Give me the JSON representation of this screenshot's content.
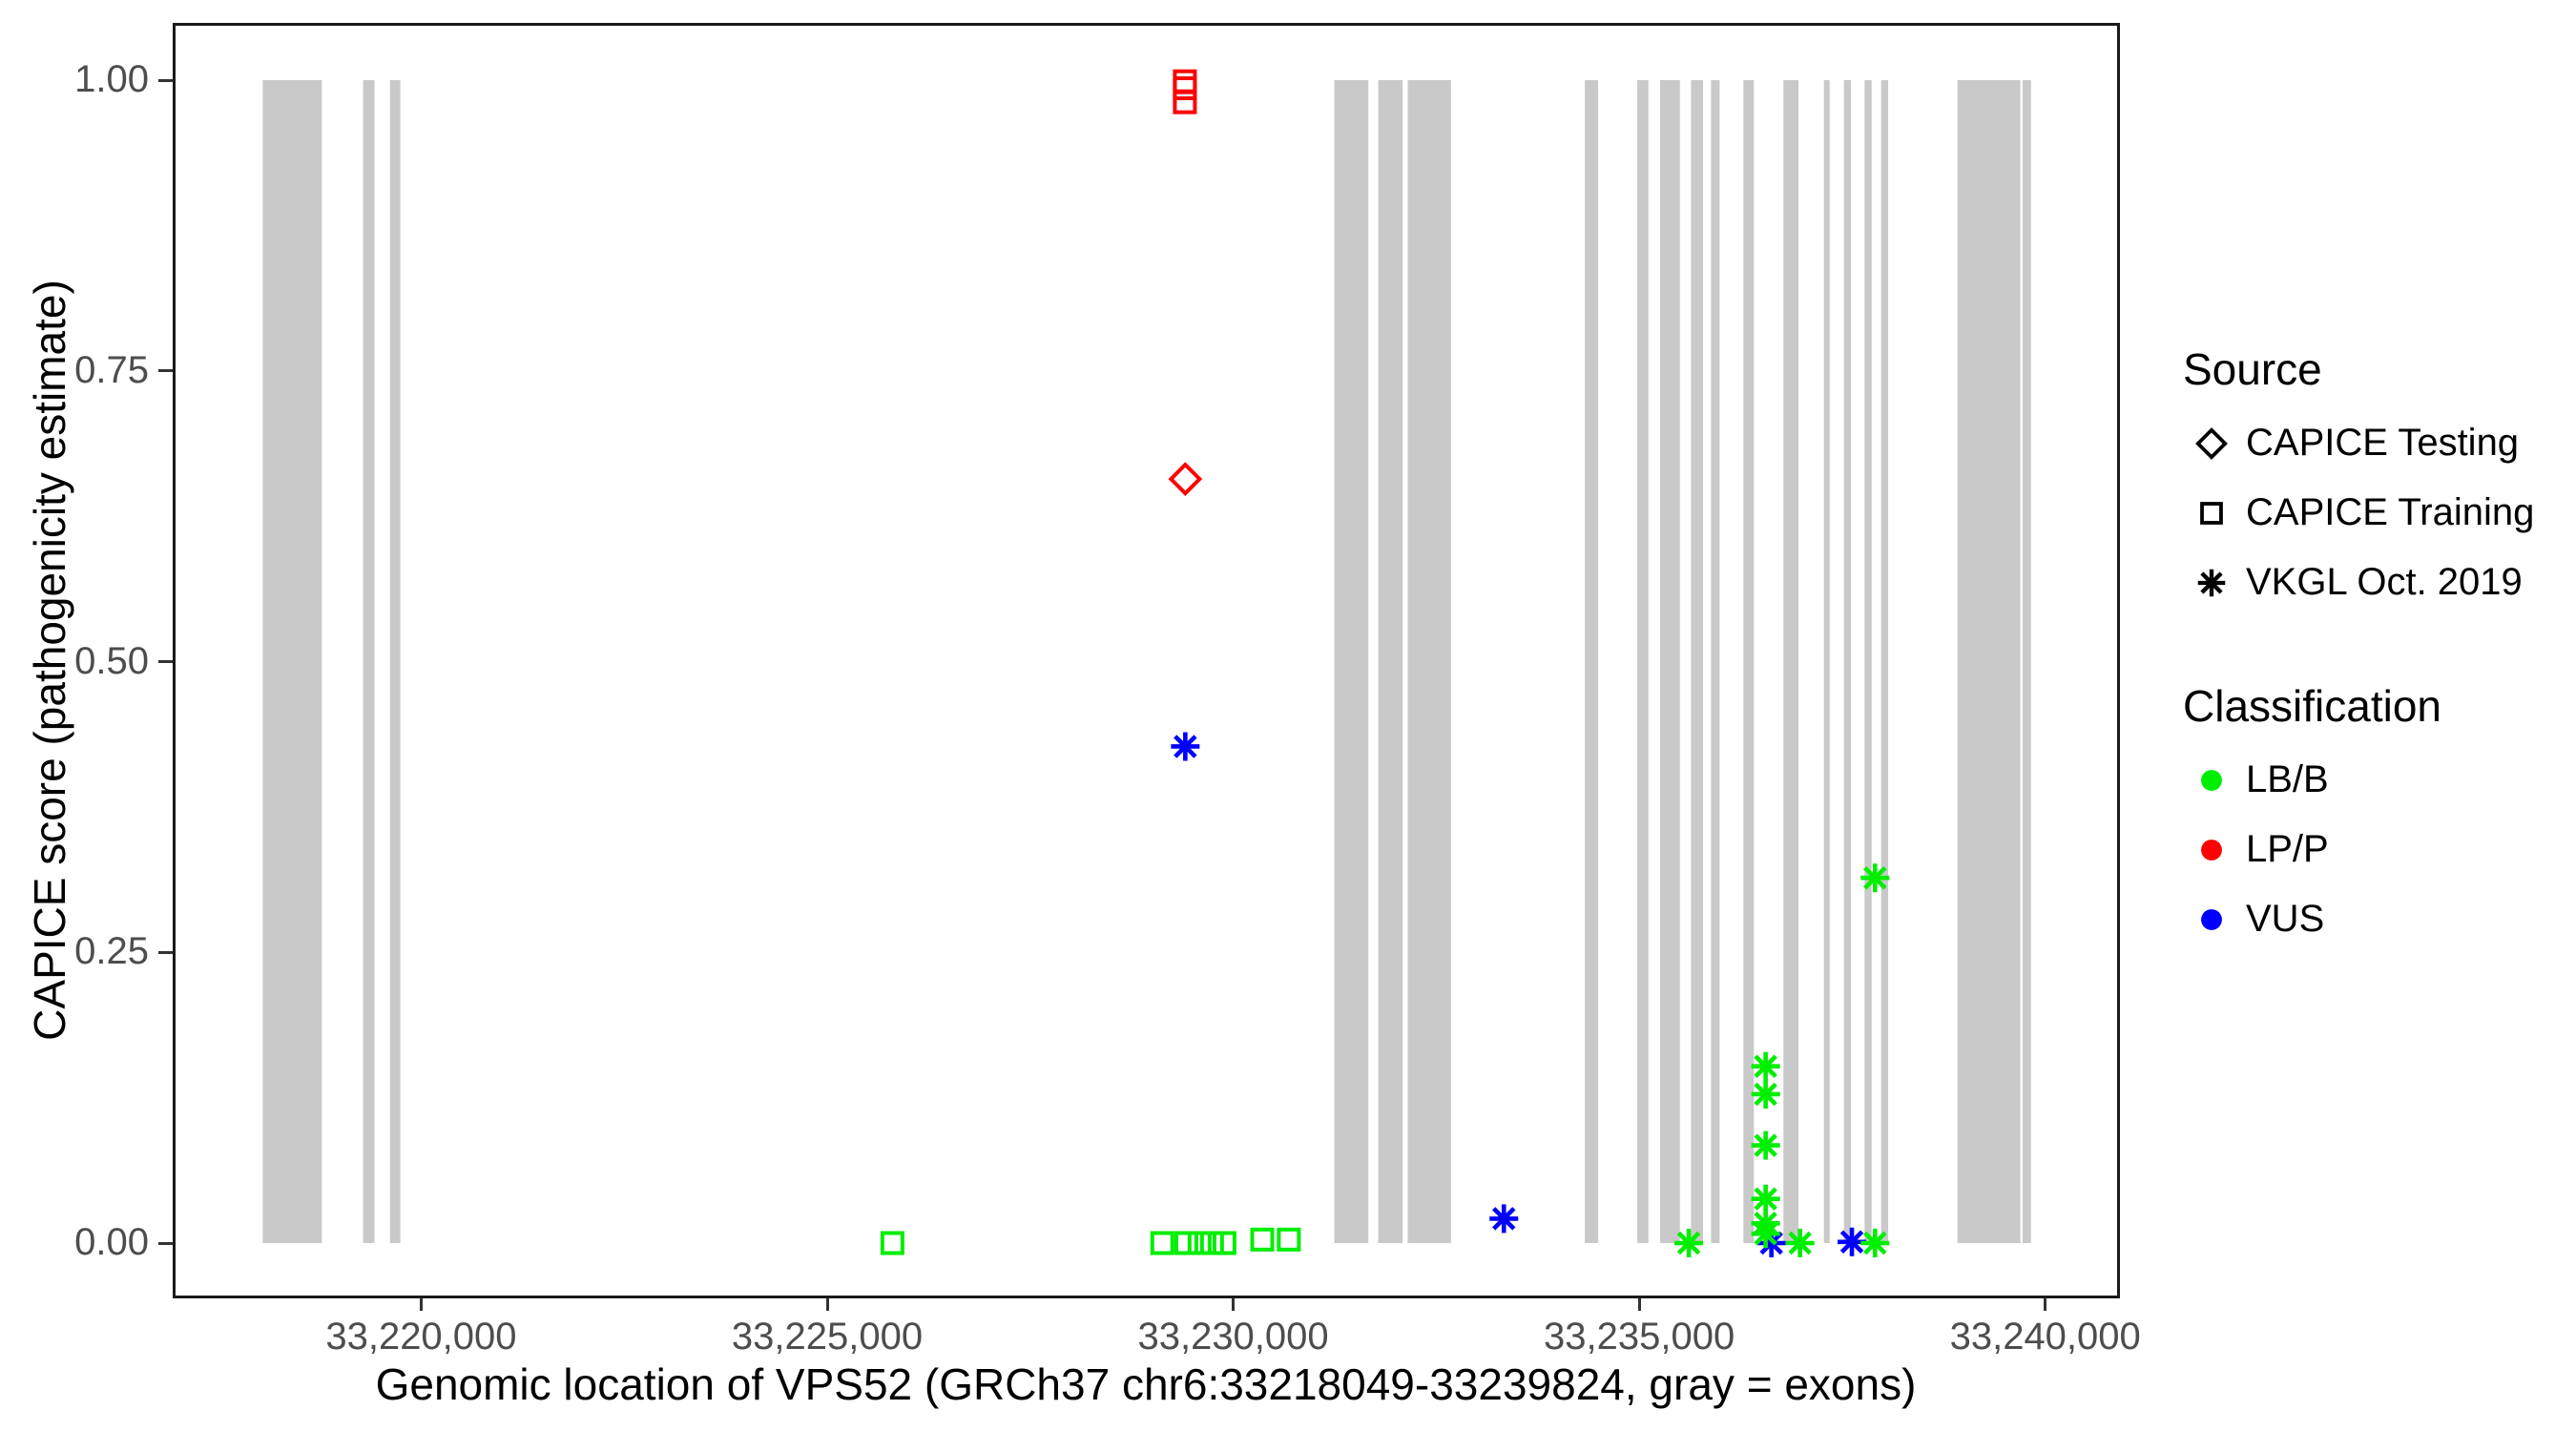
{
  "chart_data": {
    "type": "scatter",
    "title": "",
    "xlabel": "Genomic location of VPS52 (GRCh37 chr6:33218049-33239824, gray = exons)",
    "ylabel": "CAPICE score (pathogenicity estimate)",
    "x_domain_bp": [
      33216940,
      33240920
    ],
    "y_domain": [
      -0.0476,
      1.0492
    ],
    "x_ticks": [
      {
        "bp": 33220000,
        "label": "33,220,000"
      },
      {
        "bp": 33225000,
        "label": "33,225,000"
      },
      {
        "bp": 33230000,
        "label": "33,230,000"
      },
      {
        "bp": 33235000,
        "label": "33,235,000"
      },
      {
        "bp": 33240000,
        "label": "33,240,000"
      }
    ],
    "y_ticks": [
      {
        "v": 0.0,
        "label": "0.00"
      },
      {
        "v": 0.25,
        "label": "0.25"
      },
      {
        "v": 0.5,
        "label": "0.50"
      },
      {
        "v": 0.75,
        "label": "0.75"
      },
      {
        "v": 1.0,
        "label": "1.00"
      }
    ],
    "exon_note": "gray bars = exons of VPS52, drawn from score 0 to 1",
    "exons_bp": [
      [
        33218049,
        33218776
      ],
      [
        33219285,
        33219425
      ],
      [
        33219617,
        33219743
      ],
      [
        33231245,
        33231664
      ],
      [
        33231785,
        33232087
      ],
      [
        33232149,
        33232682
      ],
      [
        33234330,
        33234494
      ],
      [
        33234976,
        33235113
      ],
      [
        33235258,
        33235501
      ],
      [
        33235637,
        33235786
      ],
      [
        33235884,
        33235990
      ],
      [
        33236283,
        33236412
      ],
      [
        33236776,
        33236961
      ],
      [
        33237274,
        33237345
      ],
      [
        33237521,
        33237607
      ],
      [
        33237775,
        33237862
      ],
      [
        33237979,
        33238065
      ],
      [
        33238919,
        33239694
      ],
      [
        33239721,
        33239824
      ]
    ],
    "series": [
      {
        "name": "LP/P - CAPICE Training",
        "classification": "LP/P",
        "source": "CAPICE Training",
        "shape": "square",
        "color": "#FF0000",
        "points": [
          [
            33229405,
            0.999
          ],
          [
            33229405,
            0.993
          ],
          [
            33229405,
            0.981
          ]
        ]
      },
      {
        "name": "LP/P - CAPICE Testing",
        "classification": "LP/P",
        "source": "CAPICE Testing",
        "shape": "diamond",
        "color": "#FF0000",
        "points": [
          [
            33229410,
            0.657
          ]
        ]
      },
      {
        "name": "VUS - VKGL Oct. 2019",
        "classification": "VUS",
        "source": "VKGL Oct. 2019",
        "shape": "asterisk",
        "color": "#0000FF",
        "points": [
          [
            33229410,
            0.427
          ],
          [
            33233333,
            0.021
          ],
          [
            33236628,
            0.0
          ],
          [
            33237619,
            0.001
          ]
        ]
      },
      {
        "name": "LB/B - CAPICE Training",
        "classification": "LB/B",
        "source": "CAPICE Training",
        "shape": "square",
        "color": "#00EE00",
        "points": [
          [
            33225803,
            0.0
          ],
          [
            33229127,
            0.0
          ],
          [
            33229422,
            0.0
          ],
          [
            33229586,
            0.0
          ],
          [
            33229739,
            0.0
          ],
          [
            33229892,
            0.0
          ],
          [
            33230358,
            0.003
          ],
          [
            33230685,
            0.003
          ]
        ]
      },
      {
        "name": "LB/B - VKGL Oct. 2019",
        "classification": "LB/B",
        "source": "VKGL Oct. 2019",
        "shape": "asterisk",
        "color": "#00EE00",
        "points": [
          [
            33236557,
            0.152
          ],
          [
            33236557,
            0.128
          ],
          [
            33236557,
            0.084
          ],
          [
            33236557,
            0.038
          ],
          [
            33236557,
            0.017
          ],
          [
            33236557,
            0.008
          ],
          [
            33235610,
            0.0
          ],
          [
            33236980,
            0.0
          ],
          [
            33237904,
            0.314
          ],
          [
            33237904,
            0.0
          ]
        ]
      }
    ],
    "legend": {
      "source": {
        "title": "Source",
        "items": [
          {
            "shape": "diamond",
            "label": "CAPICE Testing"
          },
          {
            "shape": "square",
            "label": "CAPICE Training"
          },
          {
            "shape": "asterisk",
            "label": "VKGL Oct. 2019"
          }
        ]
      },
      "classification": {
        "title": "Classification",
        "items": [
          {
            "color": "#00EE00",
            "label": "LB/B"
          },
          {
            "color": "#FF0000",
            "label": "LP/P"
          },
          {
            "color": "#0000FF",
            "label": "VUS"
          }
        ]
      }
    },
    "colors": {
      "exon": "#C9C9C9",
      "lbb": "#00EE00",
      "lpp": "#FF0000",
      "vus": "#0000FF",
      "tick_text": "#4D4D4D",
      "axis_line": "#1a1a1a"
    },
    "layout_hints": {
      "grid": false,
      "legend_position": "right",
      "panel_border": true
    }
  }
}
